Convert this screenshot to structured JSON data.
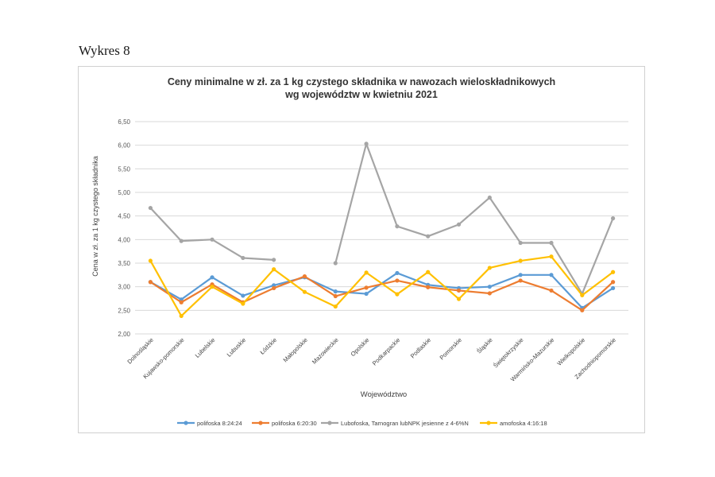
{
  "page": {
    "figure_label": "Wykres 8"
  },
  "chart_data": {
    "type": "line",
    "title_line1": "Ceny minimalne w zł. za 1 kg czystego składnika w nawozach wieloskładnikowych",
    "title_line2": "wg województw w kwietniu  2021",
    "xlabel": "Województwo",
    "ylabel": "Cena w zł. za 1 kg czystego składnika",
    "ylim": [
      2.0,
      6.5
    ],
    "yticks": [
      "2,00",
      "2,50",
      "3,00",
      "3,50",
      "4,00",
      "4,50",
      "5,00",
      "5,50",
      "6,00",
      "6,50"
    ],
    "ytick_values": [
      2.0,
      2.5,
      3.0,
      3.5,
      4.0,
      4.5,
      5.0,
      5.5,
      6.0,
      6.5
    ],
    "grid": true,
    "legend_position": "bottom",
    "categories": [
      "Dolnośląskie",
      "Kujawsko-pomorskie",
      "Lubelskie",
      "Lubuskie",
      "Łódzkie",
      "Małopolskie",
      "Mazowieckie",
      "Opolskie",
      "Podkarpackie",
      "Podlaskie",
      "Pomorskie",
      "Śląskie",
      "Świętokrzyskie",
      "Warmińsko-Mazurskie",
      "Wielkopolskie",
      "Zachodniopomorskie"
    ],
    "series": [
      {
        "name": "polifoska 8:24:24",
        "color": "#5b9bd5",
        "values": [
          3.1,
          2.73,
          3.2,
          2.81,
          3.03,
          3.2,
          2.9,
          2.85,
          3.29,
          3.04,
          2.97,
          3.0,
          3.25,
          3.25,
          2.55,
          2.97
        ]
      },
      {
        "name": "polifoska 6:20:30",
        "color": "#ed7d31",
        "values": [
          3.1,
          2.67,
          3.05,
          2.67,
          2.97,
          3.22,
          2.8,
          2.98,
          3.13,
          2.99,
          2.92,
          2.86,
          3.13,
          2.92,
          2.5,
          3.1
        ]
      },
      {
        "name": "Lubofoska, Tarnogran lubNPK jesienne z 4-6%N",
        "color": "#a5a5a5",
        "values": [
          4.67,
          3.97,
          4.0,
          3.61,
          3.57,
          null,
          3.5,
          6.03,
          4.28,
          4.07,
          4.32,
          4.89,
          3.93,
          3.93,
          2.85,
          4.45
        ]
      },
      {
        "name": "amofoska 4:16:18",
        "color": "#ffc000",
        "values": [
          3.55,
          2.38,
          3.0,
          2.64,
          3.37,
          2.89,
          2.58,
          3.3,
          2.84,
          3.31,
          2.74,
          3.4,
          3.55,
          3.64,
          2.82,
          3.31
        ]
      }
    ]
  }
}
